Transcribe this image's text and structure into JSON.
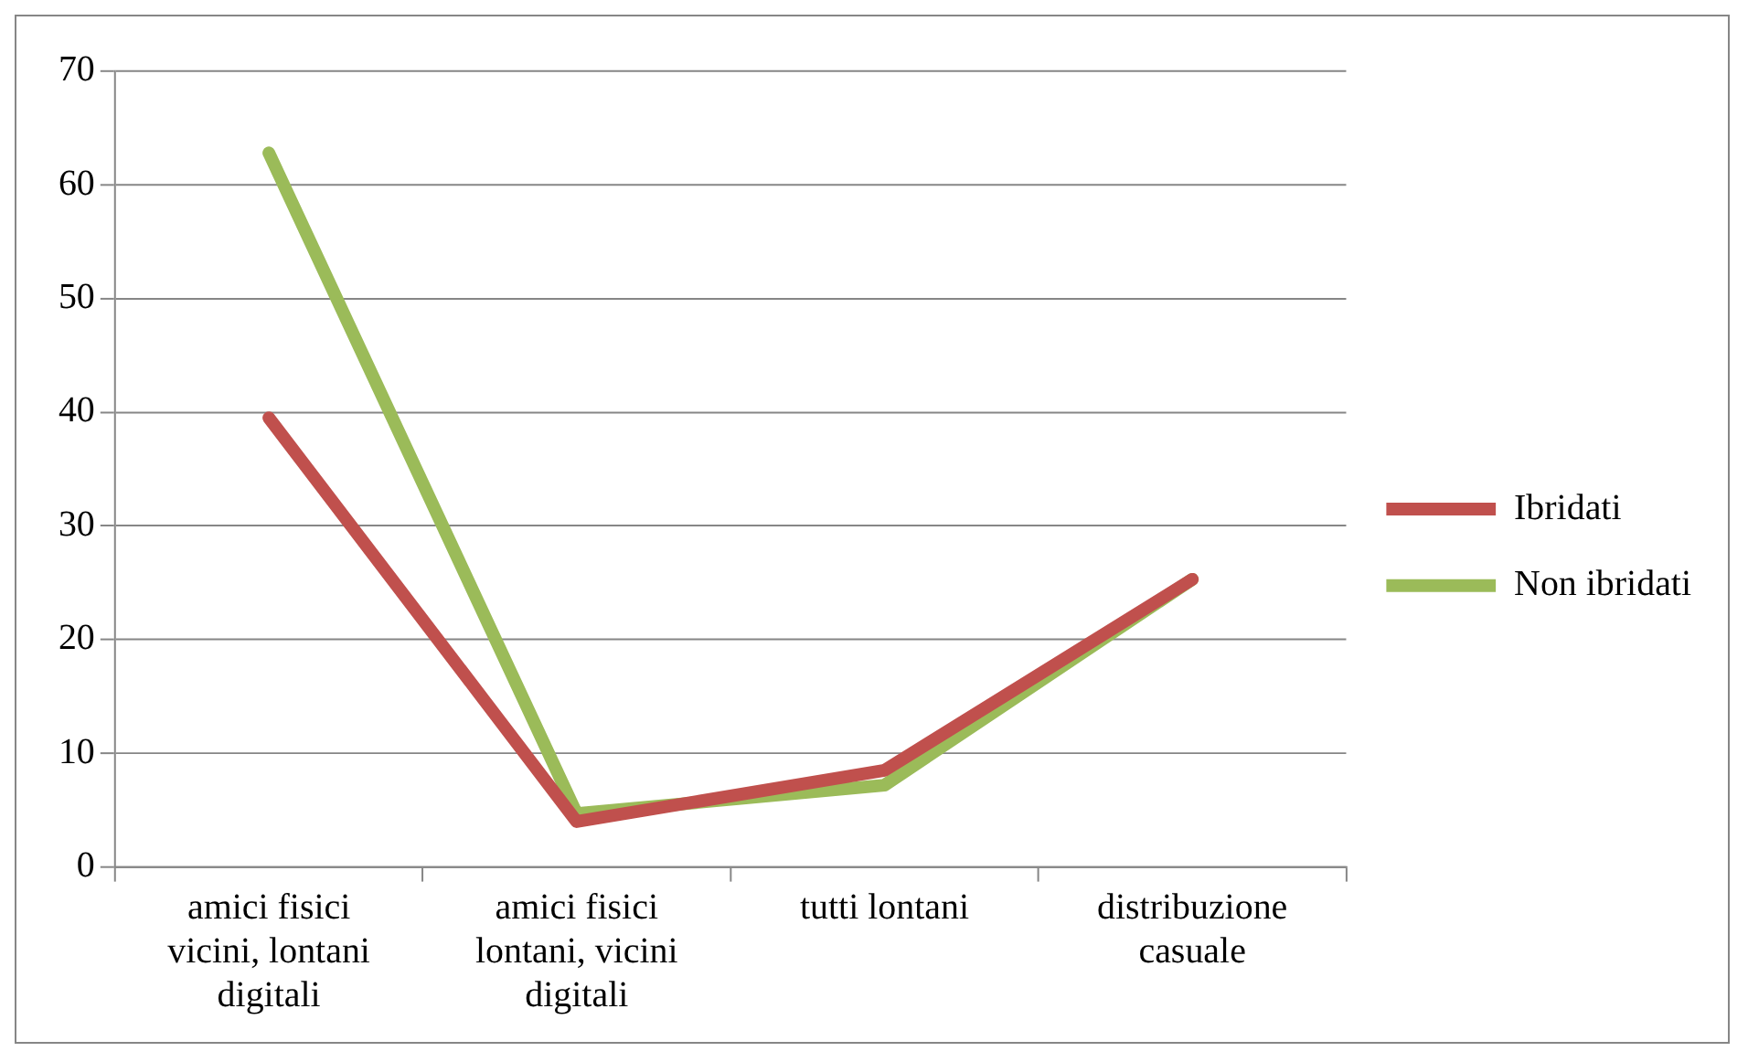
{
  "chart_data": {
    "type": "line",
    "categories": [
      "amici fisici vicini, lontani digitali",
      "amici fisici lontani, vicini digitali",
      "tutti lontani",
      "distribuzione casuale"
    ],
    "series": [
      {
        "name": "Ibridati",
        "color": "#c0504d",
        "values": [
          39.5,
          4.0,
          8.5,
          25.3
        ]
      },
      {
        "name": "Non ibridati",
        "color": "#9bbb59",
        "values": [
          62.8,
          4.7,
          7.2,
          25.3
        ]
      }
    ],
    "ylim": [
      0,
      70
    ],
    "yticks": [
      0,
      10,
      20,
      30,
      40,
      50,
      60,
      70
    ],
    "grid": "y",
    "legend": "right",
    "marker": "none",
    "line_style": "solid"
  }
}
